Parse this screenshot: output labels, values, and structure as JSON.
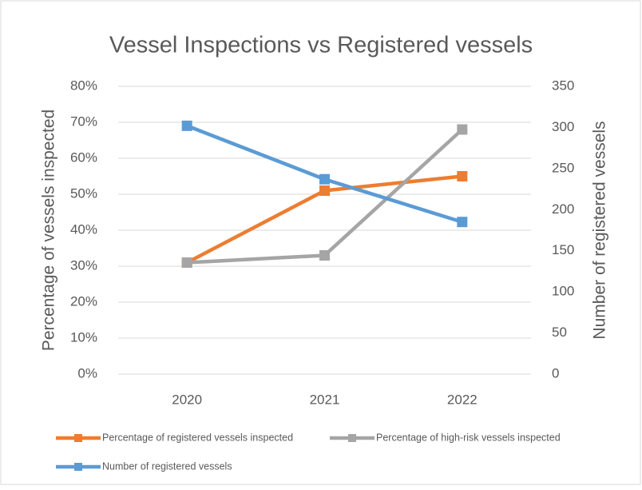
{
  "chart_data": {
    "type": "line",
    "title": "Vessel Inspections vs Registered vessels",
    "ylabel": "Percentage of vessels inspected",
    "y2label": "Number of registered vessels",
    "categories": [
      "2020",
      "2021",
      "2022"
    ],
    "series": [
      {
        "name": "Percentage of registered vessels inspected",
        "color": "#ed7d31",
        "values": [
          31,
          51,
          55
        ]
      },
      {
        "name": "Percentage of high-risk vessels inspected",
        "color": "#a5a5a5",
        "values": [
          31,
          33,
          68
        ]
      },
      {
        "name": "Number of registered vessels",
        "color": "#5b9bd5",
        "values": [
          302,
          237,
          185
        ],
        "axis": "y2"
      }
    ],
    "ylim": [
      0,
      80
    ],
    "yticks": [
      {
        "value": 0,
        "label": "0%"
      },
      {
        "value": 10,
        "label": "10%"
      },
      {
        "value": 20,
        "label": "20%"
      },
      {
        "value": 30,
        "label": "30%"
      },
      {
        "value": 40,
        "label": "40%"
      },
      {
        "value": 50,
        "label": "50%"
      },
      {
        "value": 60,
        "label": "60%"
      },
      {
        "value": 70,
        "label": "70%"
      },
      {
        "value": 80,
        "label": "80%"
      }
    ],
    "y2lim": [
      0,
      350
    ],
    "y2ticks": [
      0,
      50,
      100,
      150,
      200,
      250,
      300,
      350
    ],
    "grid": true,
    "legend": "bottom"
  }
}
